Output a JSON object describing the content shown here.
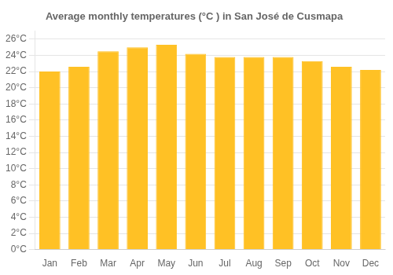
{
  "chart_data": {
    "type": "bar",
    "title": "Average monthly temperatures (°C ) in San José de Cusmapa",
    "categories": [
      "Jan",
      "Feb",
      "Mar",
      "Apr",
      "May",
      "Jun",
      "Jul",
      "Aug",
      "Sep",
      "Oct",
      "Nov",
      "Dec"
    ],
    "values": [
      22.0,
      22.6,
      24.5,
      25.0,
      25.3,
      24.2,
      23.8,
      23.8,
      23.8,
      23.3,
      22.6,
      22.2
    ],
    "color": "#FFC125",
    "ylim": [
      0,
      27
    ],
    "yticks": [
      {
        "value": 0,
        "label": "0°C"
      },
      {
        "value": 2,
        "label": "2°C"
      },
      {
        "value": 4,
        "label": "4°C"
      },
      {
        "value": 6,
        "label": "6°C"
      },
      {
        "value": 8,
        "label": "8°C"
      },
      {
        "value": 10,
        "label": "10°C"
      },
      {
        "value": 12,
        "label": "12°C"
      },
      {
        "value": 14,
        "label": "14°C"
      },
      {
        "value": 16,
        "label": "16°C"
      },
      {
        "value": 18,
        "label": "18°C"
      },
      {
        "value": 20,
        "label": "20°C"
      },
      {
        "value": 22,
        "label": "22°C"
      },
      {
        "value": 24,
        "label": "24°C"
      },
      {
        "value": 26,
        "label": "26°C"
      }
    ],
    "grid": true
  }
}
